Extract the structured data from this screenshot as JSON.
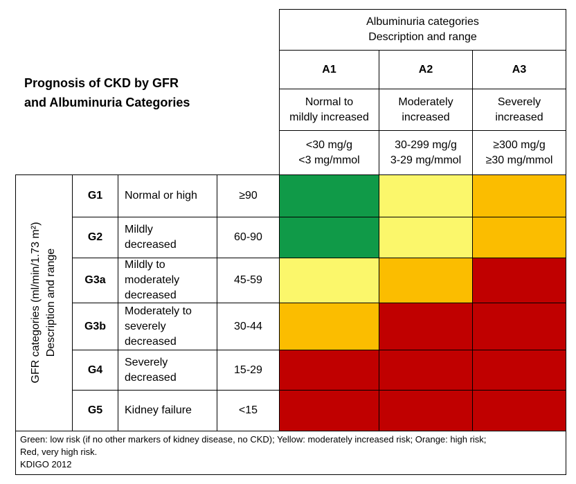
{
  "title": [
    "Prognosis of CKD by GFR",
    "and Albuminuria Categories"
  ],
  "albuminuria": {
    "heading": [
      "Albuminuria categories",
      "Description and range"
    ],
    "columns": [
      {
        "code": "A1",
        "description": [
          "Normal to",
          "mildly increased"
        ],
        "range": [
          "<30 mg/g",
          "<3 mg/mmol"
        ]
      },
      {
        "code": "A2",
        "description": [
          "Moderately",
          "increased"
        ],
        "range": [
          "30-299 mg/g",
          "3-29 mg/mmol"
        ]
      },
      {
        "code": "A3",
        "description": [
          "Severely",
          "increased"
        ],
        "range": [
          "≥300 mg/g",
          "≥30 mg/mmol"
        ]
      }
    ]
  },
  "gfr": {
    "heading": [
      "GFR categories (ml/min/1.73 m²)",
      "Description and range"
    ],
    "rows": [
      {
        "code": "G1",
        "description": [
          "Normal or high"
        ],
        "range": "≥90",
        "colors": [
          "#109a48",
          "#fbf76b",
          "#fbbd00"
        ]
      },
      {
        "code": "G2",
        "description": [
          "Mildly",
          "decreased"
        ],
        "range": "60-90",
        "colors": [
          "#109a48",
          "#fbf76b",
          "#fbbd00"
        ]
      },
      {
        "code": "G3a",
        "description": [
          "Mildly to",
          "moderately",
          "decreased"
        ],
        "range": "45-59",
        "colors": [
          "#fbf76b",
          "#fbbd00",
          "#c00000"
        ]
      },
      {
        "code": "G3b",
        "description": [
          "Moderately to",
          "severely",
          "decreased"
        ],
        "range": "30-44",
        "colors": [
          "#fbbd00",
          "#c00000",
          "#c00000"
        ]
      },
      {
        "code": "G4",
        "description": [
          "Severely",
          "decreased"
        ],
        "range": "15-29",
        "colors": [
          "#c00000",
          "#c00000",
          "#c00000"
        ]
      },
      {
        "code": "G5",
        "description": [
          "Kidney failure"
        ],
        "range": "<15",
        "colors": [
          "#c00000",
          "#c00000",
          "#c00000"
        ]
      }
    ]
  },
  "footer": {
    "legend": [
      "Green: low risk (if no other markers of kidney disease, no CKD); Yellow: moderately increased risk; Orange: high risk;",
      "Red, very high risk."
    ],
    "source": "KDIGO 2012"
  }
}
